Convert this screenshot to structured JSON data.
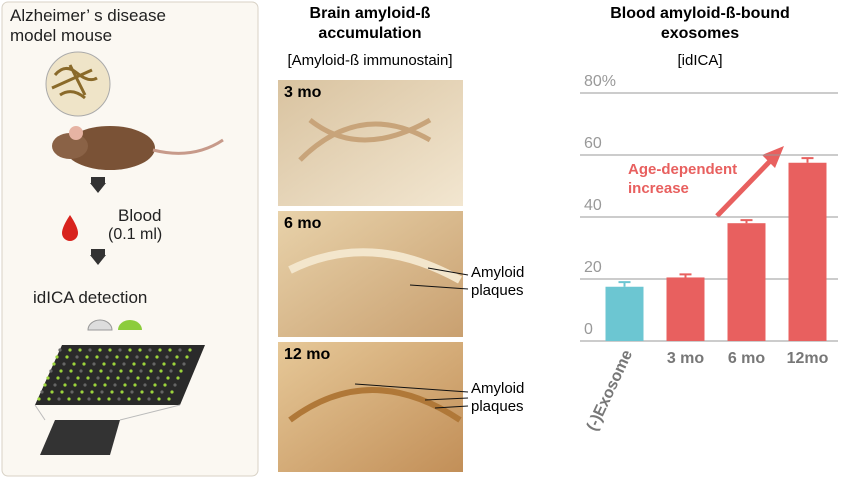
{
  "left": {
    "model": "Alzheimer’ s disease model mouse",
    "blood": "Blood",
    "volume": "(0.1 ml)",
    "detection": "idICA detection"
  },
  "middle": {
    "title": "Brain amyloid-ß accumulation",
    "subtitle": "[Amyloid-ß immunostain]",
    "images": [
      {
        "label": "3 mo"
      },
      {
        "label": "6 mo",
        "annotation": "Amyloid plaques"
      },
      {
        "label": "12 mo",
        "annotation": "Amyloid plaques"
      }
    ]
  },
  "chart_data": {
    "type": "bar",
    "title": "Blood amyloid-ß-bound exosomes",
    "subtitle": "[idICA]",
    "annotation": "Age-dependent increase",
    "categories": [
      "(-)Exosome",
      "3 mo",
      "6 mo",
      "12mo"
    ],
    "series": [
      {
        "values": [
          17.5,
          20.5,
          38,
          57.5
        ],
        "errors": [
          1.5,
          1,
          1,
          1.5
        ],
        "colors": [
          "#6cc6d2",
          "#e8605f",
          "#e8605f",
          "#e8605f"
        ]
      }
    ],
    "ylim": [
      0,
      80
    ],
    "yticks": [
      0,
      20,
      40,
      60,
      {
        "value": 80,
        "label": "80%"
      }
    ],
    "grid": true
  }
}
